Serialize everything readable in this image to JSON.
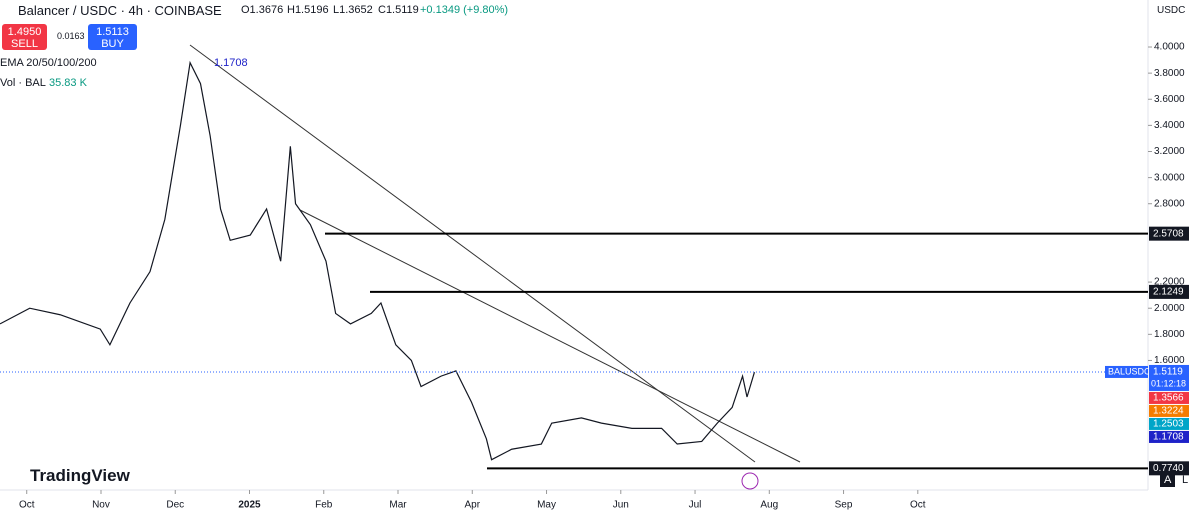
{
  "header": {
    "symbol": "Balancer / USDC · 4h · COINBASE",
    "open": "O1.3676",
    "high": "H1.5196",
    "low": "L1.3652",
    "close": "C1.5119",
    "change": "+0.1349 (+9.80%)",
    "sell_price": "1.4950",
    "sell": "SELL",
    "spread": "0.0163",
    "buy_price": "1.5113",
    "buy": "BUY",
    "ema_legend": "EMA 20/50/100/200",
    "ema_value": "1.1708",
    "vol_legend": "Vol · BAL",
    "vol_value": "35.83 K",
    "currency": "USDC",
    "logo": "TradingView",
    "scale_a": "A",
    "scale_l": "L"
  },
  "chart_data": {
    "type": "line",
    "x": [
      -0.36,
      0.04,
      0.45,
      0.99,
      1.12,
      1.39,
      1.66,
      1.86,
      2.07,
      2.2,
      2.34,
      2.47,
      2.61,
      2.74,
      3.01,
      3.23,
      3.42,
      3.55,
      3.62,
      3.82,
      4.03,
      4.16,
      4.36,
      4.64,
      4.77,
      4.97,
      5.18,
      5.31,
      5.58,
      5.78,
      5.99,
      6.19,
      6.26,
      6.53,
      6.93,
      7.07,
      7.47,
      7.74,
      8.15,
      8.55,
      8.76,
      9.09,
      9.3,
      9.5,
      9.64,
      9.7,
      9.8
    ],
    "series": [
      {
        "name": "BALUSDC",
        "color": "#131722",
        "values": [
          1.88,
          2.0,
          1.95,
          1.84,
          1.72,
          2.04,
          2.28,
          2.68,
          3.4,
          3.88,
          3.72,
          3.32,
          2.76,
          2.52,
          2.56,
          2.76,
          2.36,
          3.24,
          2.8,
          2.64,
          2.36,
          1.96,
          1.88,
          1.96,
          2.04,
          1.72,
          1.6,
          1.4,
          1.48,
          1.52,
          1.28,
          1.0,
          0.84,
          0.92,
          0.96,
          1.12,
          1.16,
          1.12,
          1.08,
          1.08,
          0.96,
          0.98,
          1.12,
          1.24,
          1.48,
          1.32,
          1.51
        ]
      }
    ],
    "xlim": [
      -0.36,
      15.1
    ],
    "ylim": [
      0.608,
      4.36
    ],
    "xticks": [
      {
        "value": 0,
        "label": "Oct"
      },
      {
        "value": 1,
        "label": "Nov"
      },
      {
        "value": 2,
        "label": "Dec"
      },
      {
        "value": 3,
        "label": "2025"
      },
      {
        "value": 4,
        "label": "Feb"
      },
      {
        "value": 5,
        "label": "Mar"
      },
      {
        "value": 6,
        "label": "Apr"
      },
      {
        "value": 7,
        "label": "May"
      },
      {
        "value": 8,
        "label": "Jun"
      },
      {
        "value": 9,
        "label": "Jul"
      },
      {
        "value": 10,
        "label": "Aug"
      },
      {
        "value": 11,
        "label": "Sep"
      },
      {
        "value": 12,
        "label": "Oct"
      }
    ],
    "yticks": [
      {
        "value": 4,
        "label": "4.0000"
      },
      {
        "value": 3.8,
        "label": "3.8000"
      },
      {
        "value": 3.6,
        "label": "3.6000"
      },
      {
        "value": 3.4,
        "label": "3.4000"
      },
      {
        "value": 3.2,
        "label": "3.2000"
      },
      {
        "value": 3,
        "label": "3.0000"
      },
      {
        "value": 2.8,
        "label": "2.8000"
      },
      {
        "value": 2.2,
        "label": "2.2000"
      },
      {
        "value": 2,
        "label": "2.0000"
      },
      {
        "value": 1.8,
        "label": "1.8000"
      },
      {
        "value": 1.6,
        "label": "1.6000"
      }
    ],
    "levels": [
      {
        "value": 2.5708,
        "label": "2.5708"
      },
      {
        "value": 2.1249,
        "label": "2.1249"
      },
      {
        "value": 0.774,
        "label": "0.7740"
      }
    ],
    "price_line": {
      "value": 1.5119,
      "label": "1.5119",
      "name": "BALUSDC",
      "countdown": "01:12:18",
      "color": "#2962ff"
    },
    "ema_labels": [
      {
        "value": 1.3566,
        "label": "1.3566",
        "color": "#f23645"
      },
      {
        "value": 1.3224,
        "label": "1.3224",
        "color": "#f57c00"
      },
      {
        "value": 1.2503,
        "label": "1.2503",
        "color": "#00a5c8"
      },
      {
        "value": 1.1708,
        "label": "1.1708",
        "color": "#1e22c8"
      }
    ]
  }
}
